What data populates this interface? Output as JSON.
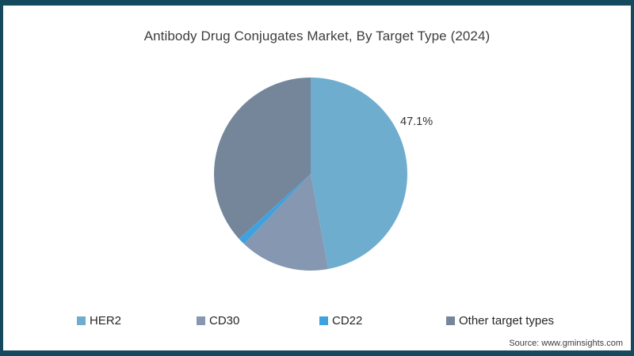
{
  "frame": {
    "border_color": "#15495d",
    "background_color": "#ffffff"
  },
  "title": "Antibody Drug Conjugates Market, By Target Type (2024)",
  "source": "Source: www.gminsights.com",
  "chart_data": {
    "type": "pie",
    "title": "Antibody Drug Conjugates Market, By Target Type (2024)",
    "start_angle": "12-oclock",
    "direction": "clockwise",
    "legend_position": "bottom",
    "slices": [
      {
        "label": "HER2",
        "value_pct": 47.1,
        "color": "#6fadcf"
      },
      {
        "label": "CD30",
        "value_pct": 15.0,
        "color": "#8597b1"
      },
      {
        "label": "CD22",
        "value_pct": 1.2,
        "color": "#3fa2df"
      },
      {
        "label": "Other target types",
        "value_pct": 36.7,
        "color": "#75869b"
      }
    ],
    "data_labels": {
      "visible_for": "HER2",
      "text": "47.1%"
    }
  }
}
